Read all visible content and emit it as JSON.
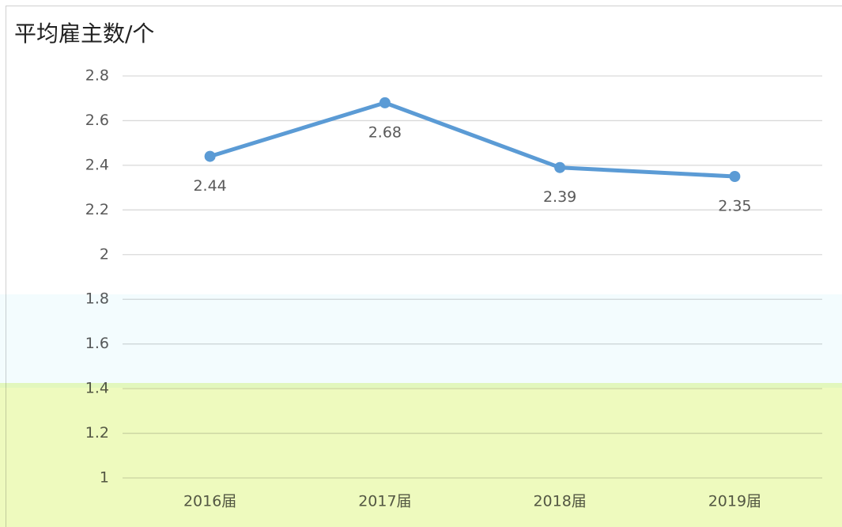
{
  "chart_data": {
    "type": "line",
    "title": "平均雇主数/个",
    "categories": [
      "2016届",
      "2017届",
      "2018届",
      "2019届"
    ],
    "series": [
      {
        "name": "平均雇主数",
        "color": "#5b9bd5",
        "values": [
          2.44,
          2.68,
          2.39,
          2.35
        ]
      }
    ],
    "ylim": [
      1,
      2.8
    ],
    "yticks": [
      1,
      1.2,
      1.4,
      1.6,
      1.8,
      2,
      2.2,
      2.4,
      2.6,
      2.8
    ],
    "grid": true
  }
}
